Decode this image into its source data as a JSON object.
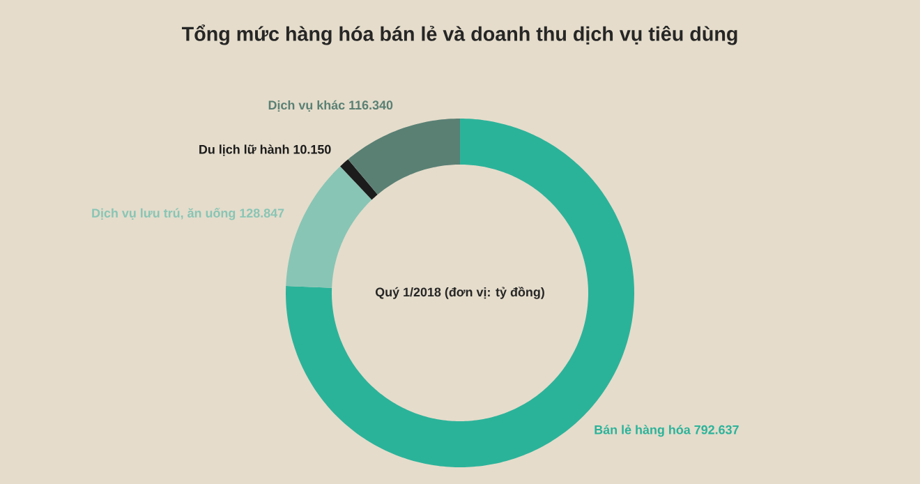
{
  "chart_data": {
    "type": "donut",
    "title": "Tổng mức hàng hóa bán lẻ và doanh thu dịch vụ tiêu dùng",
    "categories": [
      "Bán lẻ hàng hóa",
      "Dịch vụ lưu trú, ăn uống",
      "Du lịch lữ hành",
      "Dịch vụ khác"
    ],
    "values": [
      792637,
      128847,
      10150,
      116340
    ],
    "value_labels": [
      "792.637",
      "128.847",
      "10.150",
      "116.340"
    ],
    "colors": [
      "#2bb39a",
      "#88c5b5",
      "#1c1c1c",
      "#5a8074"
    ],
    "annotations": [
      "Quý 1/2018 (đơn vị: tỷ đồng)"
    ]
  }
}
